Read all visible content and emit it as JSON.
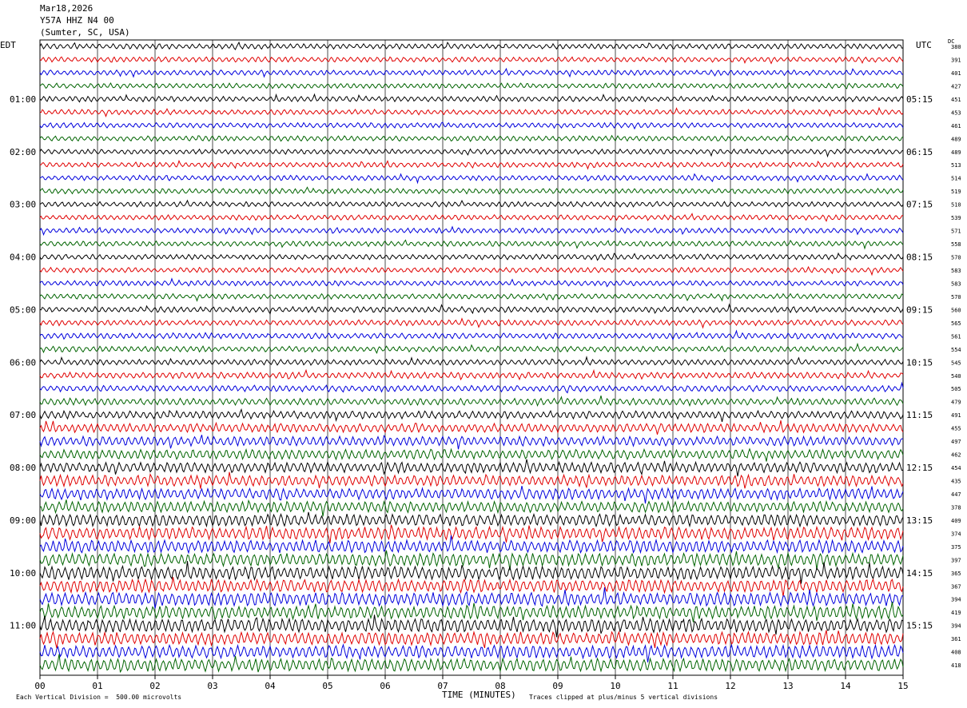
{
  "header": {
    "date": "Mar18,2026",
    "station": "Y57A HHZ N4 00",
    "location": "(Sumter, SC, USA)"
  },
  "left_axis_title": "EDT",
  "right_axis_title": "UTC",
  "dc_header": "DC",
  "xlabel": "TIME (MINUTES)",
  "footer_left": "Each Vertical Division =  500.00 microvolts",
  "footer_right": "Traces clipped at plus/minus 5 vertical divisions",
  "chart_data": {
    "type": "line",
    "title": "",
    "xlabel": "TIME (MINUTES)",
    "xlim": [
      0,
      15
    ],
    "x_ticks": [
      "00",
      "01",
      "02",
      "03",
      "04",
      "05",
      "06",
      "07",
      "08",
      "09",
      "10",
      "11",
      "12",
      "13",
      "14",
      "15"
    ],
    "left_time_labels": [
      "01:00",
      "02:00",
      "03:00",
      "04:00",
      "05:00",
      "06:00",
      "07:00",
      "08:00",
      "09:00",
      "10:00",
      "11:00"
    ],
    "right_time_labels": [
      "05:15",
      "06:15",
      "07:15",
      "08:15",
      "09:15",
      "10:15",
      "11:15",
      "12:15",
      "13:15",
      "14:15",
      "15:15"
    ],
    "trace_colors": [
      "#000000",
      "#e00000",
      "#0000dd",
      "#006400"
    ],
    "dc_offsets": [
      380,
      391,
      401,
      427,
      451,
      453,
      461,
      489,
      489,
      513,
      514,
      519,
      510,
      539,
      571,
      558,
      570,
      583,
      583,
      570,
      560,
      565,
      561,
      554,
      545,
      540,
      505,
      479,
      491,
      455,
      497,
      462,
      454,
      435,
      447,
      378,
      409,
      374,
      375,
      397,
      365,
      367,
      394,
      419,
      394,
      361,
      408,
      418
    ],
    "trace_amplitude_level": [
      1.0,
      1.0,
      1.0,
      1.0,
      1.0,
      1.0,
      1.0,
      1.0,
      1.0,
      1.0,
      1.0,
      1.0,
      1.0,
      1.0,
      1.0,
      1.0,
      1.0,
      1.0,
      1.0,
      1.0,
      1.1,
      1.1,
      1.1,
      1.1,
      1.1,
      1.2,
      1.2,
      1.3,
      1.5,
      1.7,
      1.8,
      1.9,
      2.0,
      2.1,
      2.1,
      2.1,
      2.3,
      2.4,
      2.4,
      2.4,
      2.5,
      2.5,
      2.5,
      2.5,
      2.6,
      2.5,
      2.5,
      2.4
    ]
  }
}
